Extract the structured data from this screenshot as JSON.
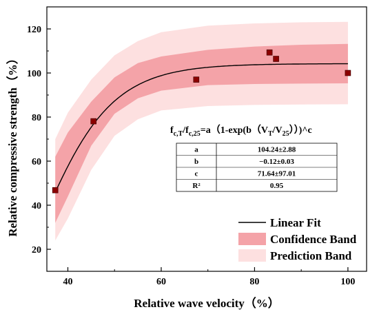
{
  "chart_data": {
    "type": "scatter",
    "xlabel": "Relative wave velocity（%）",
    "ylabel": "Relative compressive strength（%）",
    "xlim": [
      35.5,
      104
    ],
    "ylim": [
      10,
      130
    ],
    "xticks": [
      40,
      60,
      80,
      100
    ],
    "yticks": [
      20,
      40,
      60,
      80,
      100,
      120
    ],
    "grid": false,
    "legend_position": "bottom-right",
    "points": {
      "x": [
        37.3,
        45.5,
        67.5,
        83.2,
        84.6,
        100
      ],
      "y": [
        46.8,
        78.1,
        97.0,
        109.3,
        106.4,
        100.0
      ],
      "color": "#8b0000"
    },
    "fit": {
      "a": 104.24,
      "b": -0.12,
      "c": 71.64,
      "x_from": 37.3,
      "x_to": 100,
      "color": "#000000"
    },
    "confidence_band": {
      "x": [
        37.3,
        40,
        45,
        50,
        55,
        60,
        70,
        80,
        90,
        100
      ],
      "upper": [
        62.0,
        73.0,
        87.0,
        98.0,
        104.5,
        107.5,
        110.5,
        112.0,
        112.8,
        113.2
      ],
      "lower": [
        32.0,
        44.0,
        67.0,
        81.5,
        88.5,
        92.0,
        94.5,
        95.0,
        95.2,
        95.3
      ],
      "color": "#f4a3a8"
    },
    "prediction_band": {
      "x": [
        37.3,
        40,
        45,
        50,
        55,
        60,
        70,
        80,
        90,
        100
      ],
      "upper": [
        70.0,
        82.0,
        97.0,
        108.0,
        114.5,
        118.5,
        121.5,
        122.5,
        123.0,
        123.2
      ],
      "lower": [
        24.0,
        34.0,
        56.0,
        71.5,
        79.0,
        83.0,
        85.0,
        85.5,
        85.7,
        85.8
      ],
      "color": "#fde0e0"
    },
    "legend": [
      {
        "key": "fit",
        "label": "Linear Fit"
      },
      {
        "key": "confidence",
        "label": "Confidence Band"
      },
      {
        "key": "prediction",
        "label": "Prediction Band"
      }
    ],
    "formula": "f c,T/f c,25=a（1-exp(b（V T/V 25））)^c",
    "stats_table": [
      {
        "param": "a",
        "value": "104.24±2.88"
      },
      {
        "param": "b",
        "value": "−0.12±0.03"
      },
      {
        "param": "c",
        "value": "71.64±97.01"
      },
      {
        "param": "R²",
        "value": "0.95"
      }
    ]
  }
}
